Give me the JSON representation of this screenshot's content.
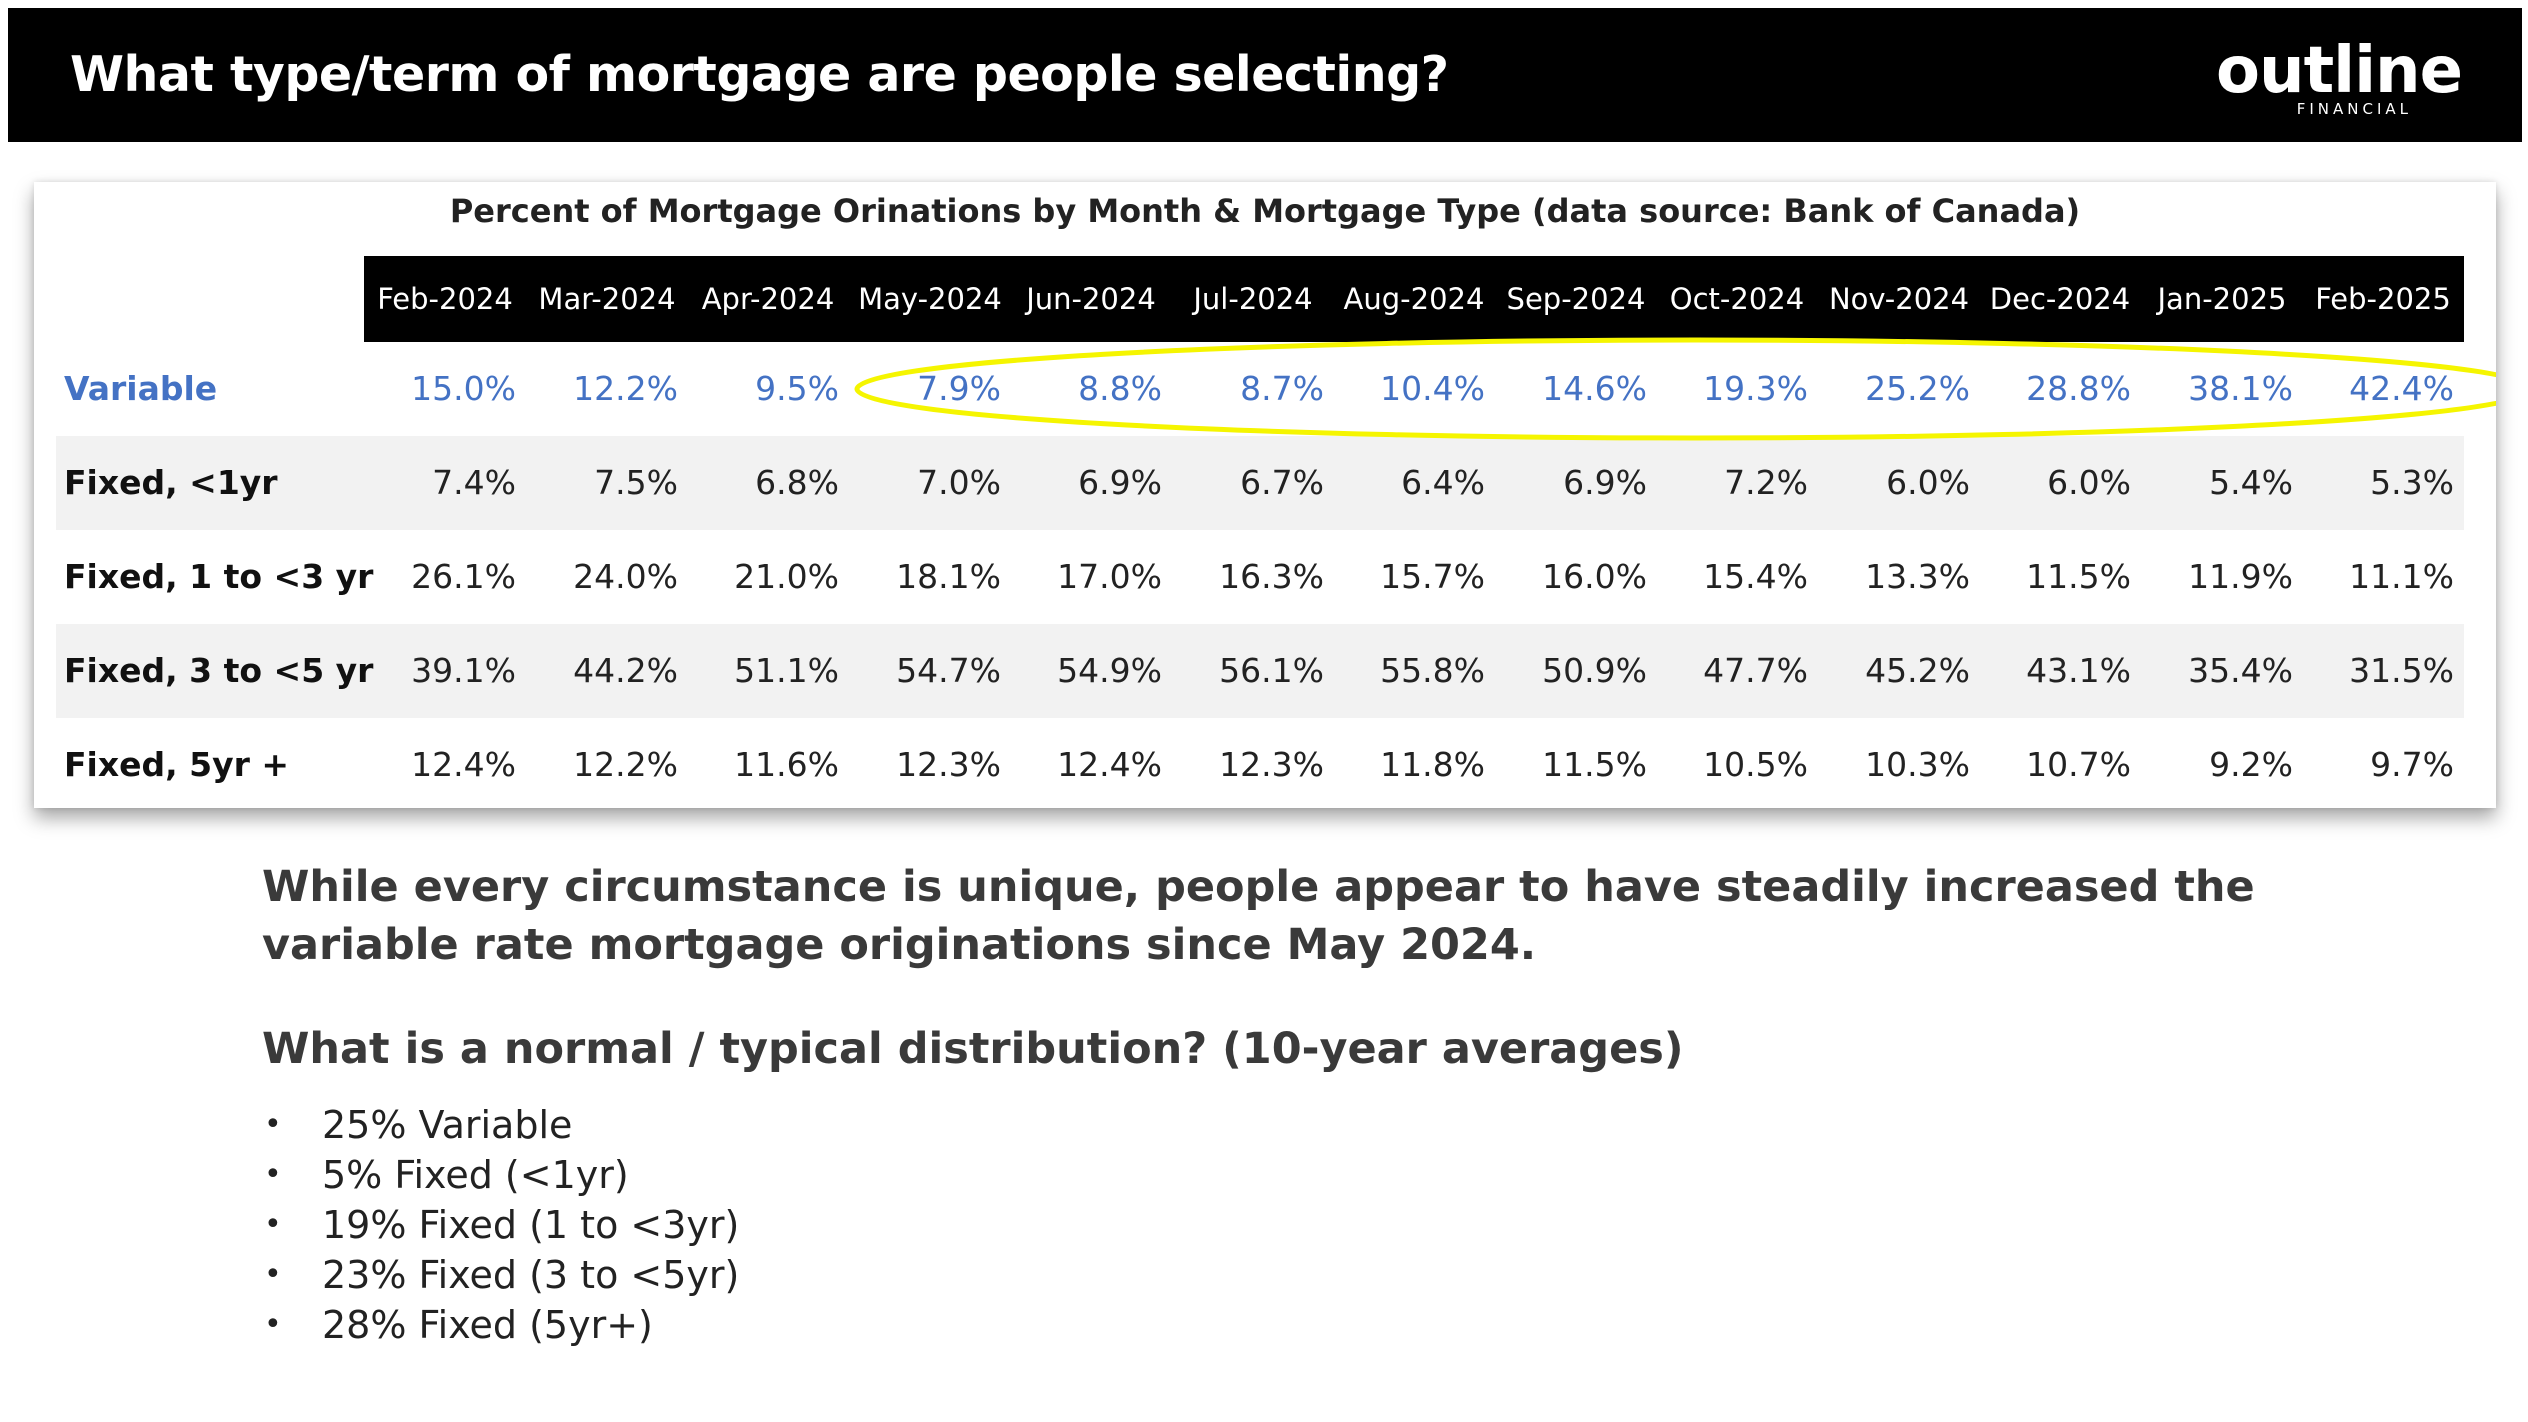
{
  "header": {
    "title": "What type/term of mortgage are people selecting?",
    "logo_text": "outline",
    "logo_subtext": "FINANCIAL"
  },
  "table": {
    "title": "Percent of Mortgage Orinations by Month & Mortgage Type (data source: Bank of Canada)",
    "columns": [
      "Feb-2024",
      "Mar-2024",
      "Apr-2024",
      "May-2024",
      "Jun-2024",
      "Jul-2024",
      "Aug-2024",
      "Sep-2024",
      "Oct-2024",
      "Nov-2024",
      "Dec-2024",
      "Jan-2025",
      "Feb-2025"
    ],
    "rows": [
      {
        "label": "Variable",
        "values": [
          "15.0%",
          "12.2%",
          "9.5%",
          "7.9%",
          "8.8%",
          "8.7%",
          "10.4%",
          "14.6%",
          "19.3%",
          "25.2%",
          "28.8%",
          "38.1%",
          "42.4%"
        ]
      },
      {
        "label": "Fixed, <1yr",
        "values": [
          "7.4%",
          "7.5%",
          "6.8%",
          "7.0%",
          "6.9%",
          "6.7%",
          "6.4%",
          "6.9%",
          "7.2%",
          "6.0%",
          "6.0%",
          "5.4%",
          "5.3%"
        ]
      },
      {
        "label": "Fixed, 1 to <3 yr",
        "values": [
          "26.1%",
          "24.0%",
          "21.0%",
          "18.1%",
          "17.0%",
          "16.3%",
          "15.7%",
          "16.0%",
          "15.4%",
          "13.3%",
          "11.5%",
          "11.9%",
          "11.1%"
        ]
      },
      {
        "label": "Fixed, 3 to <5 yr",
        "values": [
          "39.1%",
          "44.2%",
          "51.1%",
          "54.7%",
          "54.9%",
          "56.1%",
          "55.8%",
          "50.9%",
          "47.7%",
          "45.2%",
          "43.1%",
          "35.4%",
          "31.5%"
        ]
      },
      {
        "label": "Fixed, 5yr +",
        "values": [
          "12.4%",
          "12.2%",
          "11.6%",
          "12.3%",
          "12.4%",
          "12.3%",
          "11.8%",
          "11.5%",
          "10.5%",
          "10.3%",
          "10.7%",
          "9.2%",
          "9.7%"
        ]
      }
    ],
    "highlight_color": "#f5f500",
    "variable_color": "#4472c4"
  },
  "notes": {
    "summary": "While every circumstance is unique, people appear to have steadily increased the variable rate mortgage originations since May 2024.",
    "distribution_heading": "What is a normal / typical distribution? (10-year averages)",
    "distribution_items": [
      "25% Variable",
      "5% Fixed (<1yr)",
      "19% Fixed (1 to <3yr)",
      "23% Fixed (3 to <5yr)",
      "28% Fixed (5yr+)"
    ]
  }
}
